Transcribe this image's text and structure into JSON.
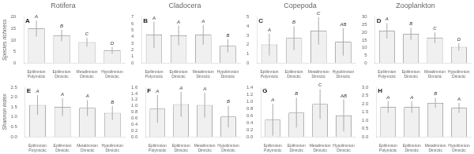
{
  "chart_data": [
    {
      "type": "bar",
      "title": "Rotifera",
      "panel_label": "A",
      "ylabel": "Species richness",
      "categories": [
        "Epilimnion\nPolymictic",
        "Epilimnion\nDimictic",
        "Metalimnion\nDimictic",
        "Hypolimnion\nDimictic"
      ],
      "values": [
        15.0,
        12.0,
        9.0,
        5.5
      ],
      "errors": [
        3.5,
        2.5,
        2.0,
        1.5
      ],
      "annotations": [
        "A",
        "B",
        "C",
        "D"
      ],
      "color": "#f0f0f0",
      "ylim": [
        0,
        20
      ],
      "yticks": [
        0,
        5,
        10,
        15,
        20
      ],
      "grid": false
    },
    {
      "type": "bar",
      "title": "Cladocera",
      "panel_label": "B",
      "categories": [
        "Epilimnion\nPolymictic",
        "Epilimnion\nDimictic",
        "Metalimnion\nDimictic",
        "Hypolimnion\nDimictic"
      ],
      "values": [
        4.3,
        4.2,
        4.3,
        2.6
      ],
      "errors": [
        2.0,
        1.5,
        1.5,
        1.0
      ],
      "annotations": [
        "A",
        "A",
        "A",
        "B"
      ],
      "color": "#f0f0f0",
      "ylim": [
        0,
        7
      ],
      "yticks": [
        0,
        1,
        2,
        3,
        4,
        5,
        6,
        7
      ],
      "grid": false
    },
    {
      "type": "bar",
      "title": "Copepoda",
      "panel_label": "C",
      "categories": [
        "Epilimnion\nPolymictic",
        "Epilimnion\nDimictic",
        "Metalimnion\nDimictic",
        "Hypolimnion\nDimictic"
      ],
      "values": [
        2.0,
        2.7,
        3.5,
        2.3
      ],
      "errors": [
        1.2,
        1.3,
        1.5,
        1.5
      ],
      "annotations": [
        "A",
        "B",
        "C",
        "AB"
      ],
      "color": "#f0f0f0",
      "ylim": [
        0,
        5
      ],
      "yticks": [
        0,
        1,
        2,
        3,
        4,
        5
      ],
      "grid": false
    },
    {
      "type": "bar",
      "title": "Zooplankton",
      "panel_label": "D",
      "categories": [
        "Epilimnion\nPolymictic",
        "Epilimnion\nDimictic",
        "Metalimnion\nDimictic",
        "Hypolimnion\nDimictic"
      ],
      "values": [
        21.0,
        19.0,
        16.5,
        10.5
      ],
      "errors": [
        5.0,
        4.0,
        3.5,
        2.5
      ],
      "annotations": [
        "A",
        "B",
        "C",
        "D"
      ],
      "color": "#f0f0f0",
      "ylim": [
        0,
        30
      ],
      "yticks": [
        0,
        5,
        10,
        15,
        20,
        25,
        30
      ],
      "grid": false
    },
    {
      "type": "bar",
      "panel_label": "E",
      "ylabel": "Shannon index",
      "categories": [
        "Epilimnion\nPolymictic",
        "Epilimnion\nDimictic",
        "Metalimnion\nDimictic",
        "Hypolimnion\nDimictic"
      ],
      "values": [
        1.6,
        1.5,
        1.45,
        1.2
      ],
      "errors": [
        0.5,
        0.45,
        0.4,
        0.35
      ],
      "annotations": [
        "A",
        "A",
        "A",
        "B"
      ],
      "color": "#f0f0f0",
      "ylim": [
        0,
        2.5
      ],
      "yticks": [
        {
          "value": 0,
          "label": "0.0"
        },
        0.5,
        {
          "value": 1.0,
          "label": "1.0"
        },
        1.5,
        {
          "value": 2.0,
          "label": "2.0"
        },
        2.5
      ],
      "grid": false
    },
    {
      "type": "bar",
      "panel_label": "F",
      "categories": [
        "Epilimnion\nPolymictic",
        "Epilimnion\nDimictic",
        "Metalimnion\nDimictic",
        "Hypolimnion\nDimictic"
      ],
      "values": [
        0.9,
        1.05,
        1.02,
        0.65
      ],
      "errors": [
        0.45,
        0.4,
        0.4,
        0.35
      ],
      "annotations": [
        "A",
        "A",
        "A",
        "B"
      ],
      "color": "#f0f0f0",
      "ylim": [
        0,
        1.6
      ],
      "yticks": [
        {
          "value": 0,
          "label": "0.0"
        },
        0.2,
        0.4,
        0.6,
        0.8,
        {
          "value": 1.0,
          "label": "1.0"
        },
        1.2,
        1.4,
        1.6
      ],
      "grid": false
    },
    {
      "type": "bar",
      "panel_label": "G",
      "categories": [
        "Epilimnion\nPolymictic",
        "Epilimnion\nDimictic",
        "Metalimnion\nDimictic",
        "Hypolimnion\nDimictic"
      ],
      "values": [
        0.48,
        0.68,
        0.92,
        0.6
      ],
      "errors": [
        0.45,
        0.42,
        0.42,
        0.45
      ],
      "annotations": [
        "A",
        "B",
        "C",
        "AB"
      ],
      "color": "#f0f0f0",
      "ylim": [
        0,
        1.4
      ],
      "yticks": [
        {
          "value": 0,
          "label": "0.0"
        },
        0.2,
        0.4,
        0.6,
        0.8,
        {
          "value": 1.0,
          "label": "1.0"
        },
        1.2,
        1.4
      ],
      "grid": false
    },
    {
      "type": "bar",
      "panel_label": "H",
      "categories": [
        "Epilimnion\nPolymictic",
        "Epilimnion\nDimictic",
        "Metalimnion\nDimictic",
        "Hypolimnion\nDimictic"
      ],
      "values": [
        1.8,
        1.8,
        2.05,
        1.75
      ],
      "errors": [
        0.35,
        0.35,
        0.3,
        0.3
      ],
      "annotations": [
        "A",
        "A",
        "B",
        "A"
      ],
      "color": "#f0f0f0",
      "ylim": [
        0,
        3
      ],
      "yticks": [
        {
          "value": 0,
          "label": "0.0"
        },
        0.5,
        {
          "value": 1.0,
          "label": "1.0"
        },
        1.5,
        {
          "value": 2.0,
          "label": "2.0"
        },
        2.5,
        {
          "value": 3.0,
          "label": "3.0"
        }
      ],
      "grid": false
    }
  ]
}
